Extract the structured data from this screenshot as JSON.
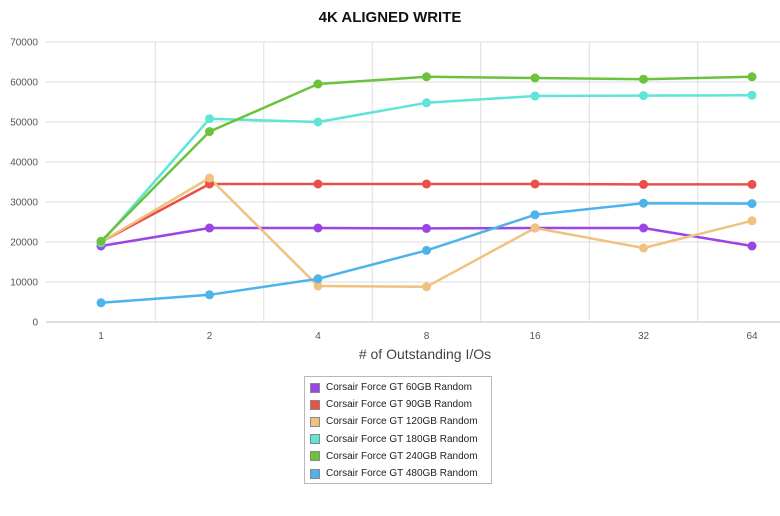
{
  "chart_data": {
    "type": "line",
    "title": "4K ALIGNED WRITE",
    "xlabel": "# of Outstanding I/Os",
    "ylabel": "",
    "categories": [
      "1",
      "2",
      "4",
      "8",
      "16",
      "32",
      "64"
    ],
    "yticks": [
      "0",
      "10000",
      "20000",
      "30000",
      "40000",
      "50000",
      "60000",
      "70000"
    ],
    "ylim": [
      0,
      70000
    ],
    "grid": true,
    "legend_position": "bottom",
    "series": [
      {
        "name": "Corsair Force GT 60GB Random",
        "color": "#9b45e4",
        "values": [
          19000,
          23500,
          23500,
          23400,
          23500,
          23500,
          19000
        ]
      },
      {
        "name": "Corsair Force GT 90GB Random",
        "color": "#e8504a",
        "values": [
          20000,
          34500,
          34500,
          34500,
          34500,
          34400,
          34400
        ]
      },
      {
        "name": "Corsair Force GT 120GB Random",
        "color": "#f0c27f",
        "values": [
          20000,
          36000,
          9000,
          8800,
          23500,
          18500,
          25300
        ]
      },
      {
        "name": "Corsair Force GT 180GB Random",
        "color": "#5fe4d8",
        "values": [
          19800,
          50800,
          50000,
          54800,
          56500,
          56600,
          56700
        ]
      },
      {
        "name": "Corsair Force GT 240GB Random",
        "color": "#6cc33b",
        "values": [
          20200,
          47600,
          59500,
          61300,
          61000,
          60700,
          61300
        ]
      },
      {
        "name": "Corsair Force GT 480GB Random",
        "color": "#4db3ea",
        "values": [
          4800,
          6800,
          10800,
          17900,
          26800,
          29700,
          29600
        ]
      }
    ]
  }
}
